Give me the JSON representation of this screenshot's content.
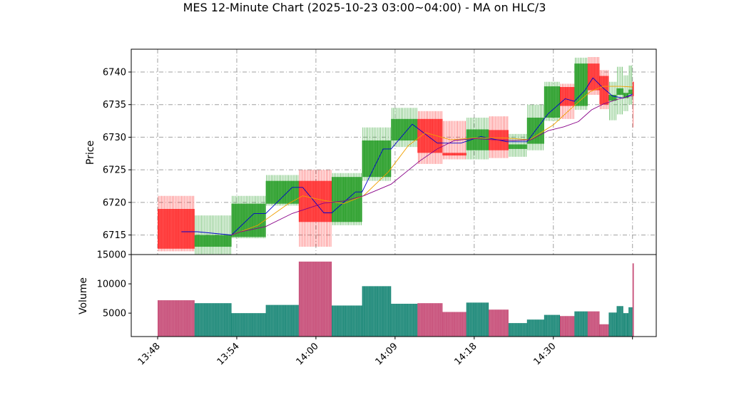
{
  "chart_data": {
    "type": "candlestick",
    "title": "MES 12-Minute Chart (2025-10-23 03:00~04:00) - MA on HLC/3",
    "price_panel": {
      "ylabel": "Price",
      "ylim": [
        6712.0,
        6743.5
      ],
      "yticks": [
        6715,
        6720,
        6725,
        6730,
        6735,
        6740
      ],
      "grid": true
    },
    "volume_panel": {
      "ylabel": "Volume",
      "ylim": [
        1000,
        15000
      ],
      "yticks": [
        5000,
        10000,
        15000
      ],
      "grid": false
    },
    "x_axis": {
      "ticks": [
        {
          "pos": 0,
          "label": "13:48"
        },
        {
          "pos": 6,
          "label": "13:54"
        },
        {
          "pos": 12,
          "label": "14:00"
        },
        {
          "pos": 18,
          "label": "14:09"
        },
        {
          "pos": 24,
          "label": "14:18"
        },
        {
          "pos": 30,
          "label": "14:30"
        },
        {
          "pos": 36,
          "label": ""
        }
      ],
      "xlim": [
        -2,
        37.8
      ]
    },
    "colors": {
      "up": "#2ca02c",
      "down": "#ff3030",
      "volume_up": "#1f8a7a",
      "volume_down": "#c8507a",
      "ma_fast": "#0000cc",
      "ma_mid": "#f0a000",
      "ma_slow": "#880088",
      "grid": "#a0a0a0"
    },
    "candles": [
      {
        "x": 0,
        "w": 2.8,
        "o": 6719.0,
        "c": 6712.9,
        "h": 6721.0,
        "l": 6712.5,
        "v": 7200
      },
      {
        "x": 2.8,
        "w": 2.8,
        "o": 6713.2,
        "c": 6715.0,
        "h": 6718.0,
        "l": 6712.0,
        "v": 6700
      },
      {
        "x": 5.6,
        "w": 2.6,
        "o": 6714.7,
        "c": 6719.8,
        "h": 6721.0,
        "l": 6714.5,
        "v": 5000
      },
      {
        "x": 8.2,
        "w": 2.5,
        "o": 6719.8,
        "c": 6723.3,
        "h": 6724.2,
        "l": 6719.5,
        "v": 6400
      },
      {
        "x": 10.7,
        "w": 2.5,
        "o": 6723.3,
        "c": 6717.0,
        "h": 6725.0,
        "l": 6713.2,
        "v": 13800
      },
      {
        "x": 13.2,
        "w": 2.3,
        "o": 6717.0,
        "c": 6723.9,
        "h": 6724.5,
        "l": 6716.5,
        "v": 6300
      },
      {
        "x": 15.5,
        "w": 2.2,
        "o": 6723.9,
        "c": 6729.5,
        "h": 6731.5,
        "l": 6723.3,
        "v": 9600
      },
      {
        "x": 17.7,
        "w": 2.0,
        "o": 6729.5,
        "c": 6732.8,
        "h": 6734.5,
        "l": 6728.5,
        "v": 6600
      },
      {
        "x": 19.7,
        "w": 1.9,
        "o": 6732.8,
        "c": 6727.6,
        "h": 6734.0,
        "l": 6725.9,
        "v": 6700
      },
      {
        "x": 21.6,
        "w": 1.8,
        "o": 6727.6,
        "c": 6727.2,
        "h": 6732.5,
        "l": 6726.6,
        "v": 5200
      },
      {
        "x": 23.4,
        "w": 1.7,
        "o": 6728.0,
        "c": 6731.2,
        "h": 6733.0,
        "l": 6726.6,
        "v": 6800
      },
      {
        "x": 25.1,
        "w": 1.5,
        "o": 6731.1,
        "c": 6728.0,
        "h": 6733.2,
        "l": 6726.8,
        "v": 5600
      },
      {
        "x": 26.6,
        "w": 1.4,
        "o": 6728.2,
        "c": 6728.9,
        "h": 6730.5,
        "l": 6727.0,
        "v": 3300
      },
      {
        "x": 28.0,
        "w": 1.3,
        "o": 6729.0,
        "c": 6733.0,
        "h": 6735.0,
        "l": 6728.0,
        "v": 3900
      },
      {
        "x": 29.3,
        "w": 1.2,
        "o": 6733.0,
        "c": 6737.8,
        "h": 6738.5,
        "l": 6732.5,
        "v": 4700
      },
      {
        "x": 30.5,
        "w": 1.1,
        "o": 6737.7,
        "c": 6734.8,
        "h": 6738.2,
        "l": 6732.8,
        "v": 4500
      },
      {
        "x": 31.6,
        "w": 1.0,
        "o": 6734.8,
        "c": 6741.3,
        "h": 6742.2,
        "l": 6734.2,
        "v": 5300
      },
      {
        "x": 32.6,
        "w": 0.9,
        "o": 6741.3,
        "c": 6737.2,
        "h": 6742.3,
        "l": 6736.5,
        "v": 5300
      },
      {
        "x": 33.5,
        "w": 0.7,
        "o": 6739.4,
        "c": 6735.0,
        "h": 6740.3,
        "l": 6734.3,
        "v": 3100
      },
      {
        "x": 34.2,
        "w": 0.6,
        "o": 6735.6,
        "c": 6736.5,
        "h": 6738.5,
        "l": 6732.6,
        "v": 5100
      },
      {
        "x": 34.8,
        "w": 0.5,
        "o": 6736.5,
        "c": 6737.5,
        "h": 6740.8,
        "l": 6733.5,
        "v": 6200
      },
      {
        "x": 35.3,
        "w": 0.4,
        "o": 6736.0,
        "c": 6736.8,
        "h": 6739.5,
        "l": 6734.0,
        "v": 5000
      },
      {
        "x": 35.7,
        "w": 0.3,
        "o": 6736.6,
        "c": 6737.3,
        "h": 6741.0,
        "l": 6735.0,
        "v": 6000
      },
      {
        "x": 36.0,
        "w": 0.1,
        "o": 6738.5,
        "c": 6736.3,
        "h": 6738.5,
        "l": 6731.5,
        "v": 13500
      }
    ],
    "moving_averages": [
      {
        "color_key": "ma_fast",
        "points": [
          [
            1.8,
            6715.5
          ],
          [
            3.0,
            6715.5
          ],
          [
            5.6,
            6715.0
          ],
          [
            7.3,
            6718.3
          ],
          [
            8.2,
            6718.3
          ],
          [
            10.2,
            6722.3
          ],
          [
            11.0,
            6722.3
          ],
          [
            12.6,
            6718.4
          ],
          [
            13.2,
            6718.4
          ],
          [
            15.0,
            6721.6
          ],
          [
            15.5,
            6721.6
          ],
          [
            17.1,
            6728.2
          ],
          [
            17.7,
            6728.2
          ],
          [
            19.3,
            6732.0
          ],
          [
            21.2,
            6729.1
          ],
          [
            23.0,
            6729.1
          ],
          [
            24.5,
            6730.1
          ],
          [
            26.5,
            6729.3
          ],
          [
            28.0,
            6729.3
          ],
          [
            29.6,
            6733.6
          ],
          [
            30.9,
            6735.9
          ],
          [
            31.6,
            6735.5
          ],
          [
            32.4,
            6737.2
          ],
          [
            33.0,
            6739.1
          ],
          [
            33.8,
            6737.5
          ],
          [
            34.5,
            6736.3
          ],
          [
            35.3,
            6736.0
          ],
          [
            36.0,
            6736.6
          ]
        ]
      },
      {
        "color_key": "ma_mid",
        "points": [
          [
            5.6,
            6715.0
          ],
          [
            7.6,
            6716.5
          ],
          [
            9.9,
            6719.8
          ],
          [
            11.0,
            6721.0
          ],
          [
            12.6,
            6720.3
          ],
          [
            14.1,
            6719.8
          ],
          [
            15.6,
            6721.0
          ],
          [
            17.5,
            6724.7
          ],
          [
            19.0,
            6728.7
          ],
          [
            20.3,
            6730.7
          ],
          [
            22.2,
            6729.6
          ],
          [
            24.2,
            6729.9
          ],
          [
            26.2,
            6729.9
          ],
          [
            28.2,
            6729.6
          ],
          [
            30.0,
            6731.9
          ],
          [
            31.4,
            6734.5
          ],
          [
            32.8,
            6737.0
          ],
          [
            33.8,
            6737.8
          ],
          [
            35.1,
            6737.8
          ],
          [
            36.0,
            6737.7
          ]
        ]
      },
      {
        "color_key": "ma_slow",
        "points": [
          [
            5.6,
            6715.0
          ],
          [
            6.3,
            6715.5
          ],
          [
            8.2,
            6716.3
          ],
          [
            10.2,
            6718.3
          ],
          [
            12.6,
            6719.9
          ],
          [
            14.1,
            6720.2
          ],
          [
            15.6,
            6721.0
          ],
          [
            17.7,
            6722.8
          ],
          [
            19.9,
            6726.4
          ],
          [
            21.2,
            6728.2
          ],
          [
            22.5,
            6729.5
          ],
          [
            24.0,
            6729.8
          ],
          [
            25.5,
            6729.6
          ],
          [
            27.0,
            6729.5
          ],
          [
            28.3,
            6729.6
          ],
          [
            29.6,
            6731.0
          ],
          [
            30.8,
            6731.6
          ],
          [
            31.9,
            6732.4
          ],
          [
            32.9,
            6734.2
          ],
          [
            33.8,
            6735.1
          ],
          [
            35.0,
            6735.9
          ],
          [
            36.0,
            6736.4
          ]
        ]
      }
    ]
  }
}
